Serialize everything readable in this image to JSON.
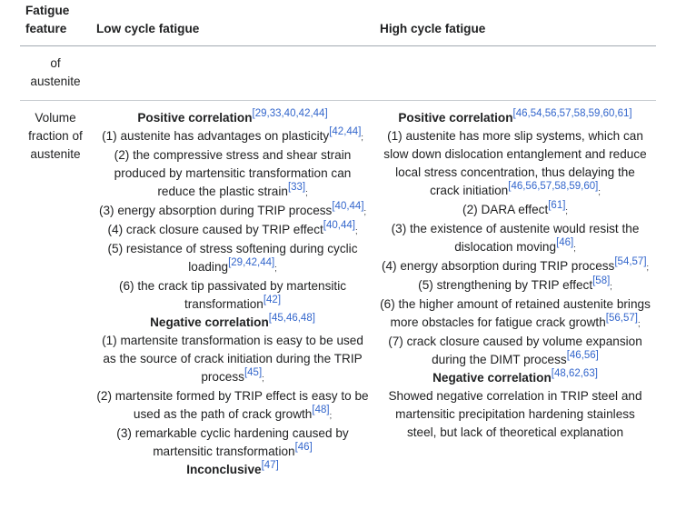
{
  "header": {
    "col1": "Fatigue feature",
    "col2": "Low cycle fatigue",
    "col3": "High cycle fatigue"
  },
  "rows": [
    {
      "feature": "of austenite"
    },
    {
      "feature": "Volume fraction of austenite",
      "low": {
        "positive": {
          "label": "Positive correlation",
          "cite": "[29,33,40,42,44]"
        },
        "positive_items": [
          {
            "text": "(1) austenite has advantages on plasticity",
            "cite": "[42,44]",
            "punct": ";"
          },
          {
            "text": "(2) the compressive stress and shear strain produced by martensitic transformation can reduce the plastic strain",
            "cite": "[33]",
            "punct": ";"
          },
          {
            "text": "(3) energy absorption during TRIP process",
            "cite": "[40,44]",
            "punct": ";"
          },
          {
            "text": "(4) crack closure caused by TRIP effect",
            "cite": "[40,44]",
            "punct": ";"
          },
          {
            "text": "(5) resistance of stress softening during cyclic loading",
            "cite": "[29,42,44]",
            "punct": ";"
          },
          {
            "text": "(6) the crack tip passivated by martensitic transformation",
            "cite": "[42]",
            "punct": ""
          }
        ],
        "negative": {
          "label": "Negative correlation",
          "cite": "[45,46,48]"
        },
        "negative_items": [
          {
            "text": "(1) martensite transformation is easy to be used as the source of crack initiation during the TRIP process",
            "cite": "[45]",
            "punct": ";"
          },
          {
            "text": "(2) martensite formed by TRIP effect is easy to be used as the path of crack growth",
            "cite": "[48]",
            "punct": ";"
          },
          {
            "text": "(3) remarkable cyclic hardening caused by martensitic transformation",
            "cite": "[46]",
            "punct": ""
          }
        ],
        "inconclusive": {
          "label": "Inconclusive",
          "cite": "[47]"
        }
      },
      "high": {
        "positive": {
          "label": "Positive correlation",
          "cite": "[46,54,56,57,58,59,60,61]"
        },
        "positive_items": [
          {
            "text": "(1) austenite has more slip systems, which can slow down dislocation entanglement and reduce local stress concentration, thus delaying the crack initiation",
            "cite": "[46,56,57,58,59,60]",
            "punct": ";"
          },
          {
            "text": "(2) DARA effect",
            "cite": "[61]",
            "punct": ";"
          },
          {
            "text": "(3) the existence of austenite would resist the dislocation moving",
            "cite": "[46]",
            "punct": ";"
          },
          {
            "text": "(4) energy absorption during TRIP process",
            "cite": "[54,57]",
            "punct": ";"
          },
          {
            "text": "(5) strengthening by TRIP effect",
            "cite": "[58]",
            "punct": ";"
          },
          {
            "text": "(6) the higher amount of retained austenite brings more obstacles for fatigue crack growth",
            "cite": "[56,57]",
            "punct": ";"
          },
          {
            "text": "(7) crack closure caused by volume expansion during the DIMT process",
            "cite": "[46,56]",
            "punct": ""
          }
        ],
        "negative": {
          "label": "Negative correlation",
          "cite": "[48,62,63]"
        },
        "negative_text": "Showed negative correlation in TRIP steel and martensitic precipitation hardening stainless steel, but lack of theoretical explanation"
      }
    }
  ],
  "colors": {
    "link": "#3366cc",
    "text": "#202122",
    "border": "#a2a9b1"
  }
}
